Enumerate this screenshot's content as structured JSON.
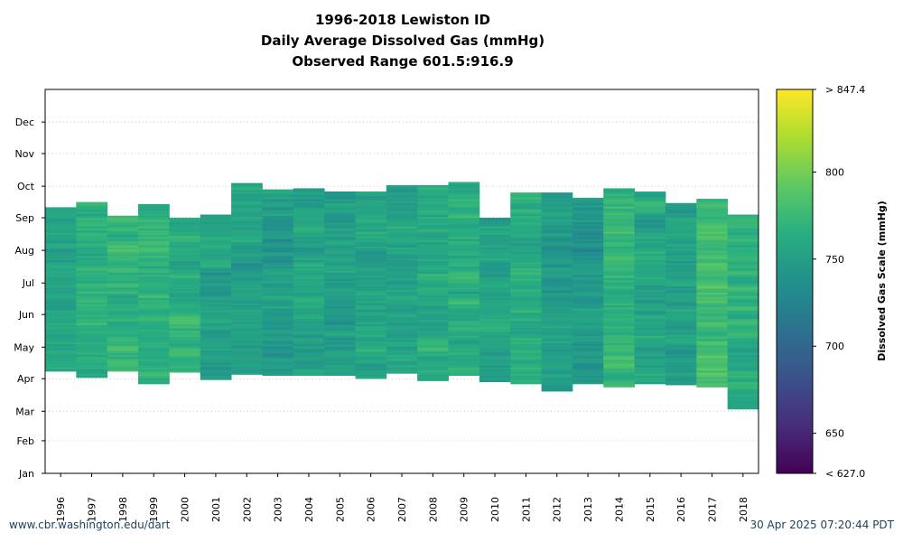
{
  "title_lines": [
    "1996-2018 Lewiston ID",
    "Daily Average Dissolved Gas (mmHg)",
    "Observed Range 601.5:916.9"
  ],
  "footer_left": "www.cbr.washington.edu/dart",
  "footer_right": "30 Apr 2025 07:20:44 PDT",
  "chart_data": {
    "type": "heatmap",
    "x_categories": [
      "1996",
      "1997",
      "1998",
      "1999",
      "2000",
      "2001",
      "2002",
      "2003",
      "2004",
      "2005",
      "2006",
      "2007",
      "2008",
      "2009",
      "2010",
      "2011",
      "2012",
      "2013",
      "2014",
      "2015",
      "2016",
      "2017",
      "2018"
    ],
    "y_ticks": [
      "Jan",
      "Feb",
      "Mar",
      "Apr",
      "May",
      "Jun",
      "Jul",
      "Aug",
      "Sep",
      "Oct",
      "Nov",
      "Dec"
    ],
    "grid": true,
    "colorbar": {
      "label": "Dissolved Gas Scale (mmHg)",
      "min": 627.0,
      "max": 847.4,
      "ticks": [
        650,
        700,
        750,
        800
      ],
      "min_label": "< 627.0",
      "max_label": "> 847.4"
    },
    "season_extent_day_of_year": [
      {
        "year": "1996",
        "start": 98,
        "end": 253
      },
      {
        "year": "1997",
        "start": 92,
        "end": 258
      },
      {
        "year": "1998",
        "start": 98,
        "end": 245
      },
      {
        "year": "1999",
        "start": 86,
        "end": 256
      },
      {
        "year": "2000",
        "start": 97,
        "end": 243
      },
      {
        "year": "2001",
        "start": 90,
        "end": 246
      },
      {
        "year": "2002",
        "start": 95,
        "end": 276
      },
      {
        "year": "2003",
        "start": 94,
        "end": 270
      },
      {
        "year": "2004",
        "start": 94,
        "end": 271
      },
      {
        "year": "2005",
        "start": 94,
        "end": 268
      },
      {
        "year": "2006",
        "start": 91,
        "end": 268
      },
      {
        "year": "2007",
        "start": 96,
        "end": 274
      },
      {
        "year": "2008",
        "start": 89,
        "end": 274
      },
      {
        "year": "2009",
        "start": 94,
        "end": 277
      },
      {
        "year": "2010",
        "start": 88,
        "end": 243
      },
      {
        "year": "2011",
        "start": 86,
        "end": 267
      },
      {
        "year": "2012",
        "start": 79,
        "end": 267
      },
      {
        "year": "2013",
        "start": 86,
        "end": 262
      },
      {
        "year": "2014",
        "start": 83,
        "end": 271
      },
      {
        "year": "2015",
        "start": 86,
        "end": 268
      },
      {
        "year": "2016",
        "start": 85,
        "end": 257
      },
      {
        "year": "2017",
        "start": 83,
        "end": 261
      },
      {
        "year": "2018",
        "start": 62,
        "end": 246
      }
    ],
    "typical_values_mmHg": [
      {
        "year": "1996",
        "value": 755
      },
      {
        "year": "1997",
        "value": 765
      },
      {
        "year": "1998",
        "value": 770
      },
      {
        "year": "1999",
        "value": 765
      },
      {
        "year": "2000",
        "value": 765
      },
      {
        "year": "2001",
        "value": 752
      },
      {
        "year": "2002",
        "value": 752
      },
      {
        "year": "2003",
        "value": 748
      },
      {
        "year": "2004",
        "value": 752
      },
      {
        "year": "2005",
        "value": 750
      },
      {
        "year": "2006",
        "value": 755
      },
      {
        "year": "2007",
        "value": 755
      },
      {
        "year": "2008",
        "value": 760
      },
      {
        "year": "2009",
        "value": 762
      },
      {
        "year": "2010",
        "value": 750
      },
      {
        "year": "2011",
        "value": 760
      },
      {
        "year": "2012",
        "value": 748
      },
      {
        "year": "2013",
        "value": 745
      },
      {
        "year": "2014",
        "value": 772
      },
      {
        "year": "2015",
        "value": 755
      },
      {
        "year": "2016",
        "value": 750
      },
      {
        "year": "2017",
        "value": 780
      },
      {
        "year": "2018",
        "value": 765
      }
    ]
  }
}
